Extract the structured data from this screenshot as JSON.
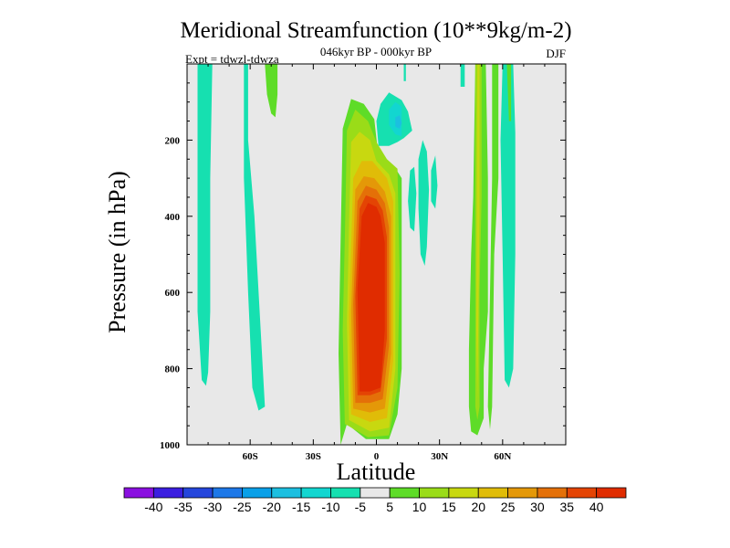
{
  "chart_data": {
    "type": "heatmap",
    "title": "Meridional Streamfunction (10**9kg/m-2)",
    "subtitle": "046kyr BP - 000kyr BP",
    "experiment": "Expt = tdwzl-tdwza",
    "season": "DJF",
    "xlabel": "Latitude",
    "ylabel": "Pressure (in hPa)",
    "xlim": [
      -90,
      90
    ],
    "ylim": [
      1000,
      0
    ],
    "y_reversed": true,
    "x_ticks": [
      {
        "value": -60,
        "label": "60S"
      },
      {
        "value": -30,
        "label": "30S"
      },
      {
        "value": 0,
        "label": "0"
      },
      {
        "value": 30,
        "label": "30N"
      },
      {
        "value": 60,
        "label": "60N"
      }
    ],
    "y_ticks": [
      {
        "value": 200,
        "label": "200"
      },
      {
        "value": 400,
        "label": "400"
      },
      {
        "value": 600,
        "label": "600"
      },
      {
        "value": 800,
        "label": "800"
      },
      {
        "value": 1000,
        "label": "1000"
      }
    ],
    "colorbar": {
      "labels": [
        "-40",
        "-35",
        "-30",
        "-25",
        "-20",
        "-15",
        "-10",
        "-5",
        "5",
        "10",
        "15",
        "20",
        "25",
        "30",
        "35",
        "40"
      ],
      "colors": [
        "#8a10e0",
        "#3b1ee0",
        "#2546dc",
        "#1d78e8",
        "#0aa0e8",
        "#1cbfe0",
        "#12d6d0",
        "#16e0b0",
        "#e8e8e8",
        "#5edc28",
        "#9adc18",
        "#c8d810",
        "#e0bc08",
        "#e49808",
        "#e47008",
        "#e44404",
        "#e02c00"
      ]
    },
    "background_color": "#e8e8e8",
    "regions": [
      {
        "level": 5,
        "color": "#5edc28",
        "poly": [
          [
            -17,
            1000
          ],
          [
            -18,
            760
          ],
          [
            -17,
            460
          ],
          [
            -16,
            170
          ],
          [
            -12,
            92
          ],
          [
            -6,
            105
          ],
          [
            -1,
            145
          ],
          [
            1,
            245
          ],
          [
            8,
            265
          ],
          [
            12,
            300
          ],
          [
            12,
            800
          ],
          [
            10,
            920
          ],
          [
            6,
            985
          ],
          [
            -5,
            985
          ],
          [
            -14,
            945
          ]
        ]
      },
      {
        "level": 10,
        "color": "#9adc18",
        "poly": [
          [
            -15,
            945
          ],
          [
            -16,
            700
          ],
          [
            -15,
            460
          ],
          [
            -14,
            175
          ],
          [
            -10,
            120
          ],
          [
            -4,
            150
          ],
          [
            0,
            205
          ],
          [
            5,
            250
          ],
          [
            10,
            275
          ],
          [
            11,
            550
          ],
          [
            10,
            850
          ],
          [
            6,
            975
          ],
          [
            -4,
            980
          ]
        ]
      },
      {
        "level": 15,
        "color": "#c8d810",
        "poly": [
          [
            -13,
            935
          ],
          [
            -14,
            680
          ],
          [
            -13,
            420
          ],
          [
            -12,
            205
          ],
          [
            -8,
            178
          ],
          [
            -3,
            200
          ],
          [
            0,
            255
          ],
          [
            6,
            290
          ],
          [
            9,
            340
          ],
          [
            9,
            800
          ],
          [
            6,
            955
          ],
          [
            -3,
            965
          ]
        ]
      },
      {
        "level": 20,
        "color": "#e0bc08",
        "poly": [
          [
            -12,
            920
          ],
          [
            -13,
            660
          ],
          [
            -11,
            300
          ],
          [
            -7,
            255
          ],
          [
            -2,
            255
          ],
          [
            5,
            300
          ],
          [
            8,
            360
          ],
          [
            8,
            780
          ],
          [
            5,
            930
          ],
          [
            -3,
            940
          ]
        ]
      },
      {
        "level": 25,
        "color": "#e49808",
        "poly": [
          [
            -11,
            905
          ],
          [
            -12,
            650
          ],
          [
            -10,
            330
          ],
          [
            -6,
            295
          ],
          [
            -1,
            300
          ],
          [
            4,
            335
          ],
          [
            7,
            400
          ],
          [
            7,
            760
          ],
          [
            4,
            905
          ],
          [
            -3,
            915
          ]
        ]
      },
      {
        "level": 30,
        "color": "#e47008",
        "poly": [
          [
            -10,
            890
          ],
          [
            -11,
            630
          ],
          [
            -9,
            360
          ],
          [
            -5,
            320
          ],
          [
            0,
            330
          ],
          [
            4,
            365
          ],
          [
            6,
            430
          ],
          [
            6,
            740
          ],
          [
            3,
            880
          ],
          [
            -3,
            890
          ]
        ]
      },
      {
        "level": 35,
        "color": "#e44404",
        "poly": [
          [
            -9,
            870
          ],
          [
            -10,
            610
          ],
          [
            -8,
            380
          ],
          [
            -5,
            345
          ],
          [
            0,
            355
          ],
          [
            3,
            385
          ],
          [
            5,
            455
          ],
          [
            5,
            720
          ],
          [
            2,
            860
          ],
          [
            -3,
            870
          ]
        ]
      },
      {
        "level": 40,
        "color": "#e02c00",
        "poly": [
          [
            -8,
            860
          ],
          [
            -9,
            590
          ],
          [
            -7,
            400
          ],
          [
            -4,
            365
          ],
          [
            0,
            375
          ],
          [
            2,
            400
          ],
          [
            4,
            470
          ],
          [
            4,
            700
          ],
          [
            2,
            850
          ],
          [
            -3,
            860
          ]
        ]
      },
      {
        "level": -5,
        "color": "#16e0b0",
        "poly": [
          [
            -85,
            0
          ],
          [
            -78,
            0
          ],
          [
            -79,
            300
          ],
          [
            -79,
            650
          ],
          [
            -80,
            810
          ],
          [
            -81,
            845
          ],
          [
            -83,
            830
          ],
          [
            -85,
            650
          ]
        ]
      },
      {
        "level": -5,
        "color": "#16e0b0",
        "poly": [
          [
            -63,
            0
          ],
          [
            -61,
            0
          ],
          [
            -61,
            200
          ],
          [
            -58,
            400
          ],
          [
            -55,
            700
          ],
          [
            -53,
            900
          ],
          [
            -56,
            910
          ],
          [
            -59,
            850
          ],
          [
            -61,
            600
          ],
          [
            -63,
            300
          ]
        ]
      },
      {
        "level": 5,
        "color": "#5edc28",
        "poly": [
          [
            -53,
            0
          ],
          [
            -47,
            0
          ],
          [
            -47,
            80
          ],
          [
            -48,
            140
          ],
          [
            -50,
            130
          ],
          [
            -52,
            80
          ]
        ]
      },
      {
        "level": -5,
        "color": "#16e0b0",
        "poly": [
          [
            0,
            150
          ],
          [
            2,
            105
          ],
          [
            6,
            75
          ],
          [
            12,
            95
          ],
          [
            15,
            125
          ],
          [
            17,
            175
          ],
          [
            13,
            195
          ],
          [
            10,
            205
          ],
          [
            6,
            215
          ],
          [
            1,
            215
          ]
        ]
      },
      {
        "level": -10,
        "color": "#12d6d0",
        "poly": [
          [
            6,
            120
          ],
          [
            9,
            100
          ],
          [
            12,
            112
          ],
          [
            12,
            190
          ],
          [
            9,
            185
          ],
          [
            6,
            160
          ]
        ]
      },
      {
        "level": -15,
        "color": "#1cbfe0",
        "poly": [
          [
            9,
            140
          ],
          [
            11,
            135
          ],
          [
            12,
            155
          ],
          [
            11,
            170
          ],
          [
            9,
            165
          ]
        ]
      },
      {
        "level": -5,
        "color": "#16e0b0",
        "poly": [
          [
            13,
            0
          ],
          [
            14,
            0
          ],
          [
            14,
            45
          ],
          [
            13,
            45
          ]
        ]
      },
      {
        "level": -5,
        "color": "#16e0b0",
        "poly": [
          [
            16,
            280
          ],
          [
            18,
            270
          ],
          [
            19,
            340
          ],
          [
            18,
            440
          ],
          [
            16,
            430
          ],
          [
            15,
            360
          ]
        ]
      },
      {
        "level": -5,
        "color": "#16e0b0",
        "poly": [
          [
            20,
            250
          ],
          [
            22,
            200
          ],
          [
            24,
            230
          ],
          [
            25,
            330
          ],
          [
            24,
            480
          ],
          [
            23,
            530
          ],
          [
            21,
            500
          ],
          [
            20,
            380
          ]
        ]
      },
      {
        "level": -5,
        "color": "#16e0b0",
        "poly": [
          [
            26,
            280
          ],
          [
            28,
            240
          ],
          [
            29,
            320
          ],
          [
            28,
            380
          ],
          [
            26,
            360
          ]
        ]
      },
      {
        "level": -5,
        "color": "#16e0b0",
        "poly": [
          [
            40,
            0
          ],
          [
            42,
            0
          ],
          [
            42,
            60
          ],
          [
            40,
            60
          ]
        ]
      },
      {
        "level": 5,
        "color": "#5edc28",
        "poly": [
          [
            45,
            0
          ],
          [
            47,
            0
          ],
          [
            46,
            350
          ],
          [
            45,
            500
          ],
          [
            44,
            750
          ],
          [
            44,
            900
          ],
          [
            45,
            965
          ],
          [
            48,
            975
          ],
          [
            51,
            930
          ],
          [
            51,
            800
          ],
          [
            53,
            650
          ],
          [
            53,
            300
          ],
          [
            52,
            0
          ]
        ]
      },
      {
        "level": 10,
        "color": "#9adc18",
        "poly": [
          [
            47,
            0
          ],
          [
            50,
            0
          ],
          [
            50,
            350
          ],
          [
            49,
            600
          ],
          [
            49,
            900
          ],
          [
            48,
            935
          ],
          [
            47,
            900
          ],
          [
            47,
            500
          ]
        ]
      },
      {
        "level": 15,
        "color": "#c8d810",
        "poly": [
          [
            48,
            0
          ],
          [
            49,
            0
          ],
          [
            49,
            400
          ],
          [
            48,
            880
          ],
          [
            47.5,
            700
          ]
        ]
      },
      {
        "level": 5,
        "color": "#5edc28",
        "poly": [
          [
            55,
            0
          ],
          [
            58,
            0
          ],
          [
            58,
            300
          ],
          [
            56,
            500
          ],
          [
            55,
            900
          ],
          [
            54,
            960
          ],
          [
            53,
            900
          ],
          [
            54,
            600
          ],
          [
            55,
            300
          ]
        ]
      },
      {
        "level": -5,
        "color": "#16e0b0",
        "poly": [
          [
            60,
            0
          ],
          [
            65,
            0
          ],
          [
            66,
            180
          ],
          [
            66,
            500
          ],
          [
            65,
            800
          ],
          [
            63,
            850
          ],
          [
            61,
            830
          ],
          [
            60,
            500
          ],
          [
            59,
            200
          ]
        ]
      },
      {
        "level": 5,
        "color": "#5edc28",
        "poly": [
          [
            62,
            0
          ],
          [
            64,
            0
          ],
          [
            64,
            150
          ],
          [
            63,
            150
          ]
        ]
      }
    ]
  }
}
